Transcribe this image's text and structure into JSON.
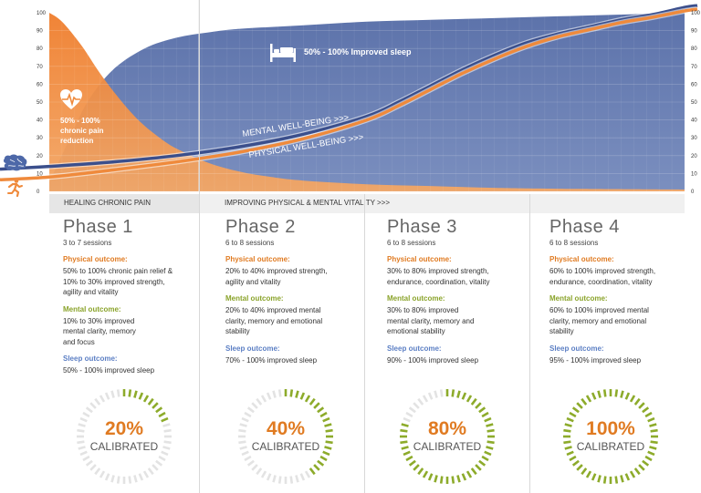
{
  "chart_data": {
    "type": "area",
    "x_domain": [
      0,
      100
    ],
    "ylim": [
      0,
      100
    ],
    "y_ticks": [
      "0",
      "10",
      "20",
      "30",
      "40",
      "50",
      "60",
      "70",
      "80",
      "90",
      "100"
    ],
    "grid": true,
    "series": [
      {
        "color": "#5b75ad",
        "x": [
          0,
          3,
          6,
          10,
          15,
          20,
          25,
          30,
          40,
          50,
          60,
          70,
          80,
          90,
          100
        ],
        "values": [
          5,
          28,
          50,
          68,
          80,
          86,
          89,
          91,
          93,
          95,
          96,
          97,
          98,
          99,
          100
        ]
      },
      {
        "color": "#ef8a3c",
        "x": [
          0,
          2,
          5,
          8,
          11,
          14,
          17,
          20,
          25,
          30,
          35,
          40,
          50,
          60,
          70,
          80,
          100
        ],
        "values": [
          100,
          95,
          82,
          66,
          52,
          40,
          31,
          24,
          16,
          11,
          8,
          6,
          4,
          3,
          2,
          1.5,
          1
        ]
      },
      {
        "name": "MENTAL WELL-BEING >>>",
        "color": "#3b4f8c",
        "x": [
          0,
          10,
          20,
          30,
          40,
          50,
          55,
          60,
          65,
          70,
          75,
          80,
          85,
          90,
          95,
          100
        ],
        "values": [
          14,
          16.5,
          20,
          25,
          32,
          42,
          50,
          59,
          68,
          76,
          83,
          88,
          92,
          96,
          99,
          103
        ]
      },
      {
        "name": "PHYSICAL WELL-BEING >>>",
        "color": "#ef8a3c",
        "x": [
          0,
          10,
          20,
          30,
          40,
          50,
          55,
          60,
          65,
          70,
          75,
          80,
          85,
          90,
          95,
          100
        ],
        "values": [
          8,
          12,
          16.5,
          22,
          29.5,
          40,
          48,
          57,
          66,
          74,
          81,
          86.5,
          90.5,
          94.5,
          97.5,
          101
        ]
      }
    ],
    "annotations": {
      "sleep": "50% - 100%  Improved sleep",
      "pain": "50% - 100% chronic pain reduction"
    }
  },
  "bands": {
    "left": "HEALING CHRONIC PAIN",
    "right": "IMPROVING  PHYSICAL & MENTAL VITALITY >>>"
  },
  "icons": {
    "bed": "bed-icon",
    "heart": "heart-pulse-icon",
    "brain": "brain-icon",
    "runner": "runner-icon"
  },
  "labels": {
    "physical": "Physical outcome:",
    "mental": "Mental outcome:",
    "sleep": "Sleep outcome:",
    "calibrated": "CALIBRATED"
  },
  "colors": {
    "physical": "#e07b22",
    "mental": "#8aa32a",
    "sleep": "#5c7fc4",
    "dial_active": "#8dab2b",
    "dial_inactive": "#e3e3e3"
  },
  "phases": [
    {
      "title": "Phase 1",
      "sessions": "3 to 7 sessions",
      "physical": "50% to 100% chronic pain relief &\n10% to 30% improved strength,\nagility and vitality",
      "mental": "10% to 30% improved\nmental clarity, memory\nand focus",
      "sleep": "50% - 100% improved sleep",
      "calibrated_pct": "20%",
      "calibrated_value": 0.2
    },
    {
      "title": "Phase 2",
      "sessions": "6 to 8 sessions",
      "physical": "20% to 40% improved strength,\nagility and vitality",
      "mental": "20% to 40% improved mental\nclarity, memory and emotional\nstability",
      "sleep": "70% - 100% improved sleep",
      "calibrated_pct": "40%",
      "calibrated_value": 0.4
    },
    {
      "title": "Phase 3",
      "sessions": "6 to 8 sessions",
      "physical": "30% to 80% improved strength,\nendurance, coordination, vitality",
      "mental": "30% to 80% improved\nmental clarity, memory and\nemotional stability",
      "sleep": "90% - 100% improved sleep",
      "calibrated_pct": "80%",
      "calibrated_value": 0.8
    },
    {
      "title": "Phase 4",
      "sessions": "6 to 8 sessions",
      "physical": "60% to 100% improved strength,\nendurance, coordination, vitality",
      "mental": "60% to 100% improved mental\nclarity, memory and emotional\nstability",
      "sleep": "95% - 100% improved sleep",
      "calibrated_pct": "100%",
      "calibrated_value": 1.0
    }
  ]
}
